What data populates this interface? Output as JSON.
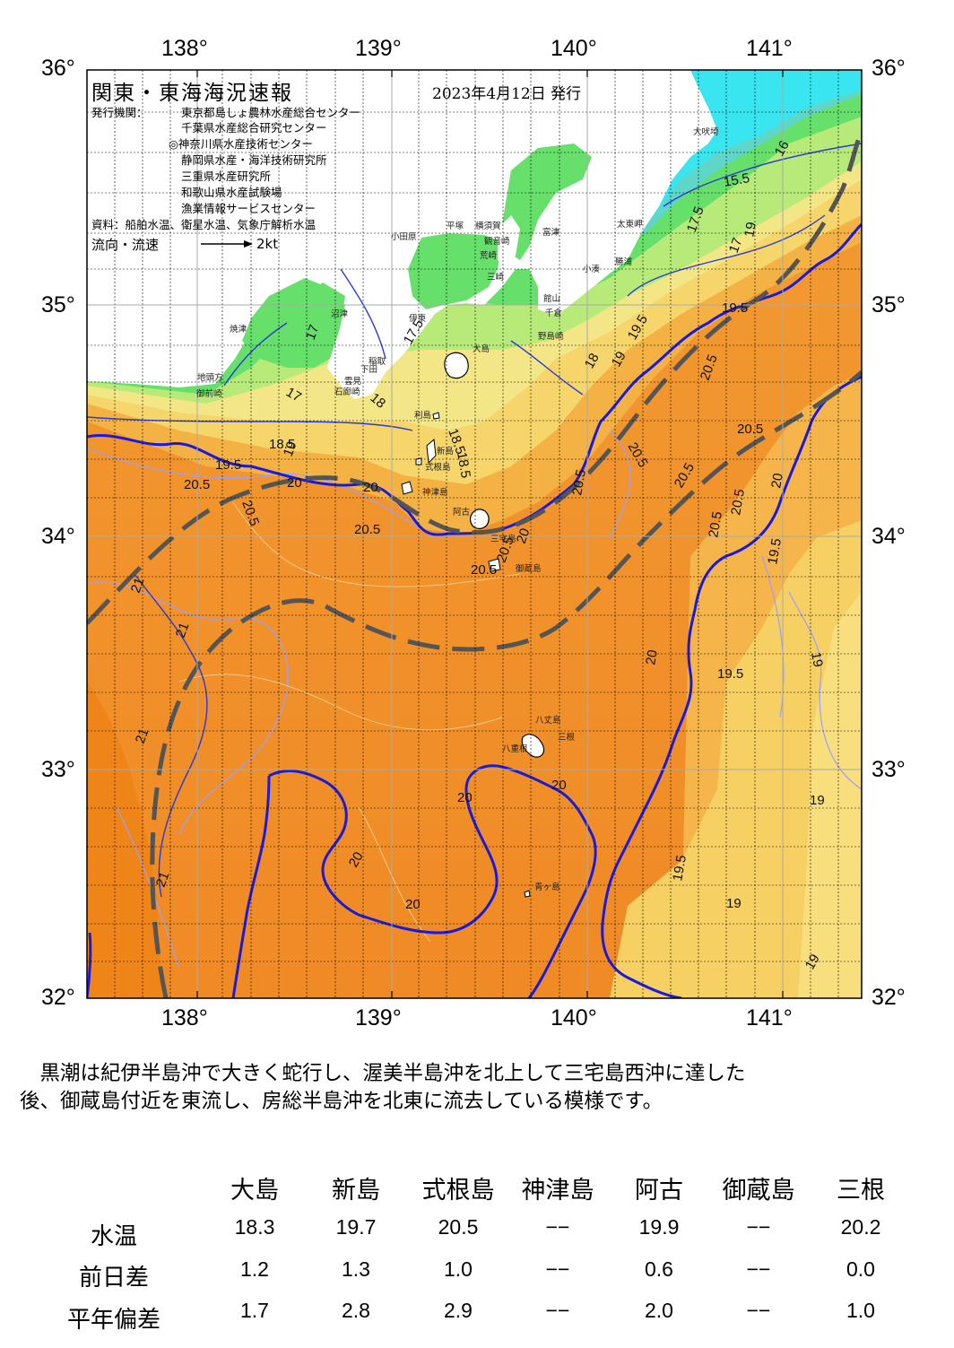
{
  "header": {
    "title": "関東・東海海況速報",
    "date": "2023年4月12日 発行",
    "issuer_label": "発行機関：",
    "issuers": [
      "東京都島しょ農林水産総合センター",
      "千葉県水産総合研究センター",
      "◎神奈川県水産技術センター",
      "静岡県水産・海洋技術研究所",
      "三重県水産研究所",
      "和歌山県水産試験場",
      "漁業情報サービスセンター"
    ],
    "sources": "資料：船舶水温、衛星水温、気象庁解析水温",
    "flow_label": "流向・流速",
    "flow_speed": "2kt"
  },
  "axes": {
    "lon_labels": [
      "138°",
      "139°",
      "140°",
      "141°"
    ],
    "lat_labels": [
      "36°",
      "35°",
      "34°",
      "33°",
      "32°"
    ]
  },
  "map": {
    "type": "sea-surface-temperature map",
    "colors": {
      "land": "#ffffff",
      "t15": "#39e6f0",
      "t16": "#5fd6c8",
      "t17": "#66e06a",
      "t18": "#b8ea7a",
      "t185": "#f3e687",
      "t19": "#f6d56b",
      "t195": "#f3b243",
      "t20": "#f29a30",
      "t205": "#f08a25",
      "kuroshio_line": "#555555",
      "isotherm_major": "#1a1adc",
      "isotherm_minor": "#9aa0ff"
    },
    "contour_labels": [
      {
        "text": "15.5"
      },
      {
        "text": "16"
      },
      {
        "text": "17"
      },
      {
        "text": "17"
      },
      {
        "text": "17"
      },
      {
        "text": "17.5"
      },
      {
        "text": "17.5"
      },
      {
        "text": "18"
      },
      {
        "text": "18"
      },
      {
        "text": "18.5"
      },
      {
        "text": "18.5"
      },
      {
        "text": "18.5"
      },
      {
        "text": "19"
      },
      {
        "text": "19"
      },
      {
        "text": "19"
      },
      {
        "text": "19.5"
      },
      {
        "text": "19.5"
      },
      {
        "text": "19.5"
      },
      {
        "text": "20"
      },
      {
        "text": "20"
      },
      {
        "text": "20"
      },
      {
        "text": "20"
      },
      {
        "text": "20.5"
      },
      {
        "text": "20.5"
      },
      {
        "text": "20.5"
      },
      {
        "text": "20.5"
      },
      {
        "text": "20.5"
      },
      {
        "text": "20.5"
      },
      {
        "text": "20.5"
      },
      {
        "text": "20.5"
      },
      {
        "text": "20.5"
      },
      {
        "text": "20.5"
      },
      {
        "text": "20.5"
      },
      {
        "text": "20.5"
      },
      {
        "text": "21"
      },
      {
        "text": "21"
      },
      {
        "text": "21"
      },
      {
        "text": "21"
      },
      {
        "text": "20"
      },
      {
        "text": "20"
      },
      {
        "text": "20"
      },
      {
        "text": "20"
      },
      {
        "text": "20"
      },
      {
        "text": "19.5"
      },
      {
        "text": "19.5"
      },
      {
        "text": "19.5"
      },
      {
        "text": "19"
      },
      {
        "text": "19"
      },
      {
        "text": "19"
      },
      {
        "text": "19"
      }
    ],
    "place_names": [
      {
        "text": "大吠埼"
      },
      {
        "text": "太東岬"
      },
      {
        "text": "勝浦"
      },
      {
        "text": "小湊"
      },
      {
        "text": "富津"
      },
      {
        "text": "横須賀"
      },
      {
        "text": "観音崎"
      },
      {
        "text": "荒崎"
      },
      {
        "text": "三崎"
      },
      {
        "text": "館山"
      },
      {
        "text": "千倉"
      },
      {
        "text": "野島崎"
      },
      {
        "text": "平塚"
      },
      {
        "text": "小田原"
      },
      {
        "text": "伊東"
      },
      {
        "text": "沼津"
      },
      {
        "text": "焼津"
      },
      {
        "text": "地頭方"
      },
      {
        "text": "御前崎"
      },
      {
        "text": "稲取"
      },
      {
        "text": "下田"
      },
      {
        "text": "雲見"
      },
      {
        "text": "石廊崎"
      },
      {
        "text": "大島"
      },
      {
        "text": "利島"
      },
      {
        "text": "新島"
      },
      {
        "text": "式根島"
      },
      {
        "text": "神津島"
      },
      {
        "text": "阿古"
      },
      {
        "text": "三宅島"
      },
      {
        "text": "御蔵島"
      },
      {
        "text": "八丈島"
      },
      {
        "text": "三根"
      },
      {
        "text": "八重根"
      },
      {
        "text": "青ヶ島"
      }
    ]
  },
  "summary": "　黒潮は紀伊半島沖で大きく蛇行し、渥美半島沖を北上して三宅島西沖に達した\n後、御蔵島付近を東流し、房総半島沖を北東に流去している模様です。",
  "table": {
    "columns": [
      "大島",
      "新島",
      "式根島",
      "神津島",
      "阿古",
      "御蔵島",
      "三根"
    ],
    "rows": [
      {
        "label": "水温",
        "values": [
          "18.3",
          "19.7",
          "20.5",
          "−−",
          "19.9",
          "−−",
          "20.2"
        ]
      },
      {
        "label": "前日差",
        "values": [
          "1.2",
          "1.3",
          "1.0",
          "−−",
          "0.6",
          "−−",
          "0.0"
        ]
      },
      {
        "label": "平年偏差",
        "values": [
          "1.7",
          "2.8",
          "2.9",
          "−−",
          "2.0",
          "−−",
          "1.0"
        ]
      }
    ]
  }
}
